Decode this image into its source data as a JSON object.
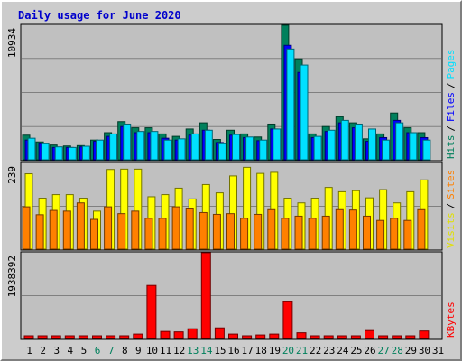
{
  "title": "Daily usage for June 2020",
  "chart_data": [
    {
      "type": "bar",
      "panel": "pages-files-hits",
      "categories": [
        "1",
        "2",
        "3",
        "4",
        "5",
        "6",
        "7",
        "8",
        "9",
        "10",
        "11",
        "12",
        "13",
        "14",
        "15",
        "16",
        "17",
        "18",
        "19",
        "20",
        "21",
        "22",
        "23",
        "24",
        "25",
        "26",
        "27",
        "28",
        "29",
        "30",
        "31"
      ],
      "ytick_label": "10934",
      "ymax": 10934,
      "right_labels": [
        {
          "text": "Hits",
          "color": "#00805c"
        },
        {
          "text": "Files",
          "color": "#0000ff"
        },
        {
          "text": "Pages",
          "color": "#00e0ff"
        }
      ],
      "series": [
        {
          "name": "Hits",
          "color": "#00805c",
          "values": [
            2000,
            1450,
            1200,
            1120,
            1150,
            1600,
            2200,
            3100,
            2600,
            2600,
            2100,
            1900,
            2500,
            3000,
            1650,
            2400,
            2100,
            1850,
            2900,
            10934,
            8200,
            2100,
            2700,
            3500,
            3000,
            1700,
            2100,
            3800,
            2600,
            2200,
            0
          ]
        },
        {
          "name": "Files",
          "color": "#0000ff",
          "values": [
            1600,
            1300,
            1000,
            1000,
            1050,
            1500,
            1900,
            2700,
            2200,
            2200,
            1750,
            1600,
            2000,
            2400,
            1400,
            2000,
            1800,
            1550,
            2500,
            9300,
            7100,
            1800,
            2300,
            3000,
            2600,
            1500,
            1800,
            3200,
            2200,
            1800,
            0
          ]
        },
        {
          "name": "Pages",
          "color": "#00e0ff",
          "values": [
            1750,
            1300,
            1050,
            1000,
            1100,
            1600,
            2100,
            2900,
            2300,
            2300,
            1600,
            1700,
            2100,
            2400,
            1300,
            2050,
            1850,
            1600,
            2500,
            9000,
            7700,
            1900,
            2400,
            3200,
            2900,
            2500,
            1600,
            3000,
            2200,
            1600,
            0
          ]
        }
      ]
    },
    {
      "type": "bar",
      "panel": "sites-visits",
      "categories": [
        "1",
        "2",
        "3",
        "4",
        "5",
        "6",
        "7",
        "8",
        "9",
        "10",
        "11",
        "12",
        "13",
        "14",
        "15",
        "16",
        "17",
        "18",
        "19",
        "20",
        "21",
        "22",
        "23",
        "24",
        "25",
        "26",
        "27",
        "28",
        "29",
        "30",
        "31"
      ],
      "ytick_label": "239",
      "ymax": 239,
      "right_labels": [
        {
          "text": "Visits",
          "color": "#e0e000"
        },
        {
          "text": "Sites",
          "color": "#ff8000"
        }
      ],
      "series": [
        {
          "name": "Visits",
          "color": "#ffff00",
          "values": [
            210,
            142,
            152,
            152,
            142,
            106,
            222,
            223,
            223,
            146,
            152,
            170,
            140,
            180,
            157,
            204,
            228,
            211,
            214,
            142,
            129,
            142,
            172,
            160,
            163,
            143,
            166,
            129,
            160,
            193,
            0
          ]
        },
        {
          "name": "Sites",
          "color": "#ff8000",
          "values": [
            118,
            96,
            108,
            106,
            129,
            83,
            118,
            99,
            106,
            86,
            86,
            118,
            112,
            102,
            97,
            99,
            86,
            97,
            110,
            86,
            92,
            86,
            92,
            110,
            109,
            92,
            80,
            86,
            80,
            110,
            0
          ]
        }
      ]
    },
    {
      "type": "bar",
      "panel": "kbytes",
      "categories": [
        "1",
        "2",
        "3",
        "4",
        "5",
        "6",
        "7",
        "8",
        "9",
        "10",
        "11",
        "12",
        "13",
        "14",
        "15",
        "16",
        "17",
        "18",
        "19",
        "20",
        "21",
        "22",
        "23",
        "24",
        "25",
        "26",
        "27",
        "28",
        "29",
        "30",
        "31"
      ],
      "ytick_label": "1938392",
      "ymax": 1938392,
      "right_labels": [
        {
          "text": "KBytes",
          "color": "#ff0000"
        }
      ],
      "series": [
        {
          "name": "KBytes",
          "color": "#ff0000",
          "values": [
            50000,
            30000,
            40000,
            40000,
            30000,
            30000,
            40000,
            40000,
            100000,
            1200000,
            160000,
            150000,
            220000,
            1938392,
            240000,
            100000,
            60000,
            80000,
            100000,
            830000,
            130000,
            40000,
            50000,
            60000,
            60000,
            180000,
            40000,
            60000,
            60000,
            170000,
            0
          ]
        }
      ]
    }
  ],
  "weekend_days": [
    6,
    7,
    13,
    14,
    20,
    21,
    27,
    28
  ],
  "weekday_tick_color": "#000000",
  "weekend_tick_color": "#00805c",
  "colors": {
    "grid": "#808080",
    "plot_bg": "#c0c0c0",
    "title": "#0000cc"
  }
}
